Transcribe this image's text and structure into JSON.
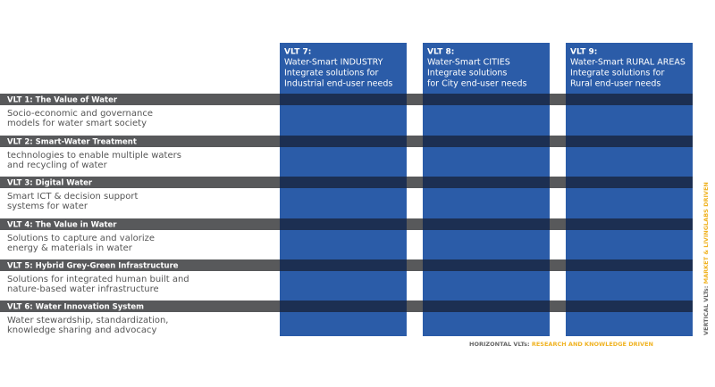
{
  "verticals": [
    {
      "label": "VLT 7:",
      "lines": [
        "Water-Smart INDUSTRY",
        "Integrate solutions for",
        "Industrial end-user needs"
      ]
    },
    {
      "label": "VLT 8:",
      "lines": [
        "Water-Smart CITIES",
        "Integrate solutions",
        "for City end-user needs"
      ]
    },
    {
      "label": "VLT 9:",
      "lines": [
        "Water-Smart RURAL AREAS",
        "Integrate solutions for",
        "Rural end-user needs"
      ]
    }
  ],
  "horizontals": [
    {
      "label": "VLT 1: The Value of Water",
      "lines": [
        "Socio-economic and governance",
        "models for water smart society"
      ]
    },
    {
      "label": "VLT 2: Smart-Water Treatment",
      "lines": [
        "technologies to enable multiple waters",
        "and recycling of water"
      ]
    },
    {
      "label": "VLT 3: Digital Water",
      "lines": [
        "Smart ICT & decision support",
        "systems for water"
      ]
    },
    {
      "label": "VLT 4: The Value in Water",
      "lines": [
        "Solutions to capture and valorize",
        "energy & materials in water"
      ]
    },
    {
      "label": "VLT 5: Hybrid Grey-Green Infrastructure",
      "lines": [
        "Solutions for integrated human built and",
        "nature-based water infrastructure"
      ]
    },
    {
      "label": "VLT 6: Water Innovation System",
      "lines": [
        "Water stewardship, standardization,",
        "knowledge sharing and advocacy"
      ]
    }
  ],
  "footer": {
    "horizontal_prefix": "HORIZONTAL VLTs: ",
    "horizontal_text": "RESEARCH AND KNOWLEDGE DRIVEN",
    "vertical_prefix": "VERTICAL VLTs: ",
    "vertical_text": "MARKET & LIVINGLABS DRIVEN"
  }
}
